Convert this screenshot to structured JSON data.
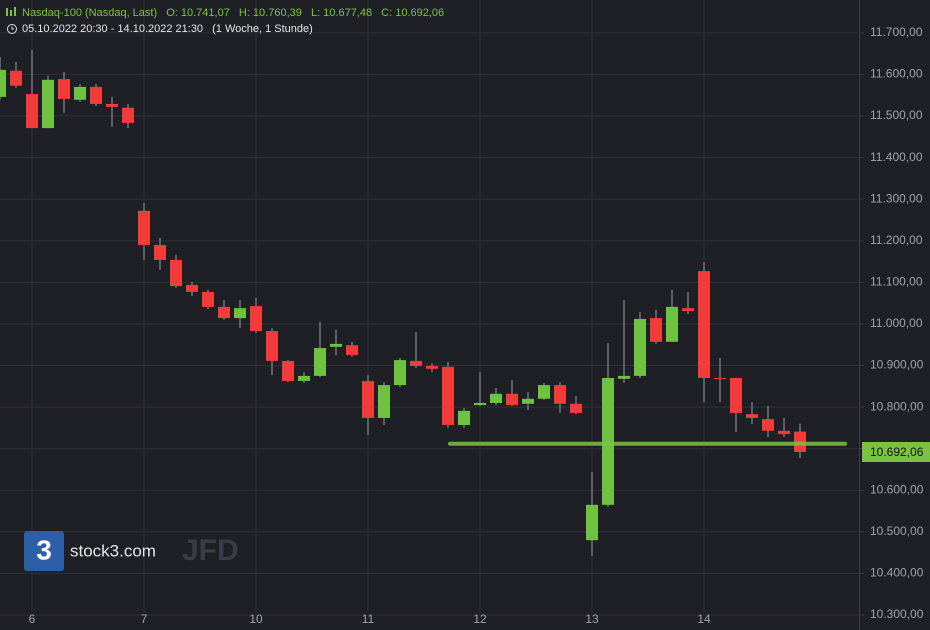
{
  "chart_data": {
    "type": "candlestick",
    "title": "Nasdaq-100 (Nasdaq, Last)",
    "ohlc_labels": [
      "O: 10.741,07",
      "H: 10.760,39",
      "L: 10.677,48",
      "C: 10.692,06"
    ],
    "subtitle": "05.10.2022 20:30 - 14.10.2022 21:30",
    "period": "(1 Woche, 1 Stunde)",
    "watermark": {
      "logo": "3",
      "brand": "stock3.com",
      "broker": "JFD"
    },
    "categories": [
      null,
      null,
      "6",
      null,
      null,
      null,
      null,
      null,
      null,
      "7",
      null,
      null,
      null,
      null,
      null,
      null,
      "10",
      null,
      null,
      null,
      null,
      null,
      null,
      "11",
      null,
      null,
      null,
      null,
      null,
      null,
      "12",
      null,
      null,
      null,
      null,
      null,
      null,
      "13",
      null,
      null,
      null,
      null,
      null,
      null,
      "14",
      null,
      null,
      null,
      null,
      null,
      null
    ],
    "up_color": "#6fc23f",
    "down_color": "#f23b3b",
    "open": [
      11546,
      11609,
      11553,
      11471,
      11589,
      11539,
      11570,
      11529,
      11520,
      11272,
      11190,
      11154,
      11094,
      11077,
      11041,
      11014,
      11043,
      10983,
      10911,
      10863,
      10875,
      10945,
      10949,
      10863,
      10774,
      10853,
      10911,
      10899,
      10897,
      10757,
      10805,
      10810,
      10832,
      10808,
      10820,
      10853,
      10808,
      10480,
      10565,
      10868,
      10875,
      11014,
      10957,
      11038,
      11127,
      10870,
      10870,
      10783,
      10771,
      10743,
      10741.07
    ],
    "high": [
      11642,
      11630,
      11659,
      11597,
      11606,
      11577,
      11577,
      11546,
      11529,
      11291,
      11207,
      11166,
      11101,
      11082,
      11058,
      11058,
      11063,
      10990,
      10913,
      10884,
      11005,
      10986,
      10957,
      10877,
      10860,
      10918,
      10981,
      10906,
      10909,
      10798,
      10884,
      10846,
      10865,
      10836,
      10858,
      10860,
      10827,
      10644,
      10954,
      11058,
      11029,
      11034,
      11082,
      11077,
      11149,
      10918,
      10870,
      10812,
      10803,
      10774,
      10760.39
    ],
    "low": [
      11539,
      11568,
      11471,
      11471,
      11508,
      11534,
      11524,
      11474,
      11471,
      11154,
      11130,
      11087,
      11067,
      11036,
      11010,
      10990,
      10978,
      10877,
      10860,
      10858,
      10872,
      10925,
      10921,
      10733,
      10757,
      10848,
      10894,
      10884,
      10750,
      10750,
      10803,
      10805,
      10803,
      10793,
      10817,
      10786,
      10783,
      10442,
      10560,
      10858,
      10870,
      10952,
      10957,
      11024,
      10812,
      10812,
      10740,
      10759,
      10728,
      10728,
      10677.48
    ],
    "close": [
      11611,
      11573,
      11471,
      11587,
      11541,
      11570,
      11529,
      11522,
      11483,
      11190,
      11154,
      11091,
      11077,
      11041,
      11014,
      11038,
      10983,
      10911,
      10863,
      10875,
      10942,
      10952,
      10925,
      10774,
      10853,
      10913,
      10899,
      10892,
      10757,
      10791,
      10810,
      10832,
      10805,
      10820,
      10853,
      10808,
      10786,
      10565,
      10870,
      10875,
      11012,
      10957,
      11041,
      11031,
      10870,
      10868,
      10786,
      10774,
      10743,
      10735,
      10692.06
    ],
    "level_line": {
      "value": 10712,
      "color": "#7cc242"
    },
    "last_price": {
      "value": 10692.06,
      "label": "10.692,06"
    },
    "ylim": [
      10264,
      11779
    ],
    "yticks": [
      {
        "value": 10300,
        "label": "10.300,00"
      },
      {
        "value": 10400,
        "label": "10.400,00"
      },
      {
        "value": 10500,
        "label": "10.500,00"
      },
      {
        "value": 10600,
        "label": "10.600,00"
      },
      {
        "value": 10700,
        "label": "10.700,00"
      },
      {
        "value": 10800,
        "label": "10.800,00"
      },
      {
        "value": 10900,
        "label": "10.900,00"
      },
      {
        "value": 11000,
        "label": "11.000,00"
      },
      {
        "value": 11100,
        "label": "11.100,00"
      },
      {
        "value": 11200,
        "label": "11.200,00"
      },
      {
        "value": 11300,
        "label": "11.300,00"
      },
      {
        "value": 11400,
        "label": "11.400,00"
      },
      {
        "value": 11500,
        "label": "11.500,00"
      },
      {
        "value": 11600,
        "label": "11.600,00"
      },
      {
        "value": 11700,
        "label": "11.700,00"
      }
    ],
    "grid": true
  }
}
